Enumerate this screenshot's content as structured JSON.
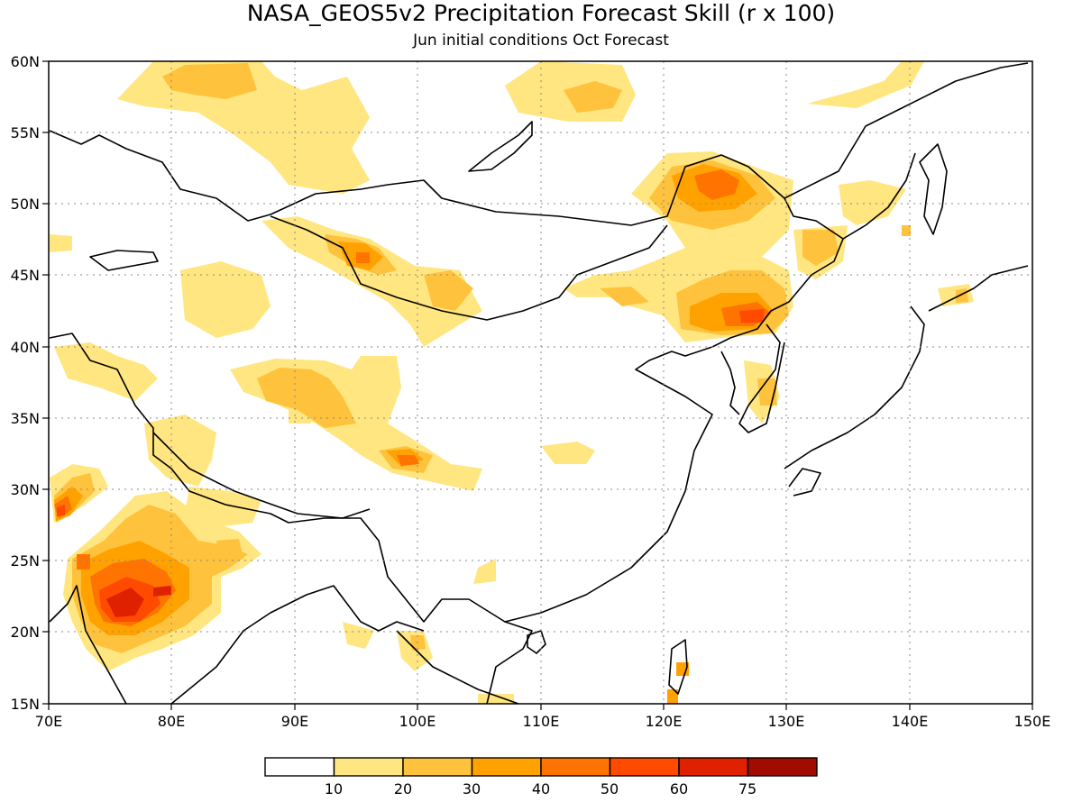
{
  "title": "NASA_GEOS5v2 Precipitation Forecast Skill (r x 100)",
  "subtitle": "Jun initial conditions  Oct Forecast",
  "map": {
    "lon_range": [
      70,
      150
    ],
    "lat_range": [
      15,
      60
    ],
    "x_ticks": [
      "70E",
      "80E",
      "90E",
      "100E",
      "110E",
      "120E",
      "130E",
      "140E",
      "150E"
    ],
    "y_ticks": [
      "15N",
      "20N",
      "25N",
      "30N",
      "35N",
      "40N",
      "45N",
      "50N",
      "55N",
      "60N"
    ],
    "gridlines": "dotted"
  },
  "colorbar": {
    "ticks": [
      "10",
      "20",
      "30",
      "40",
      "50",
      "60",
      "75"
    ],
    "colors": [
      "#ffffff",
      "#ffe680",
      "#ffc23c",
      "#ffa200",
      "#ff7300",
      "#ff4a00",
      "#e02100",
      "#a00c00"
    ]
  },
  "skill_regions": [
    {
      "name": "northern-mongolia-siberia",
      "level": 1,
      "lon": [
        75,
        111
      ],
      "lat": [
        46,
        60
      ]
    },
    {
      "name": "far-north-east",
      "level": 1,
      "lon": [
        123,
        141
      ],
      "lat": [
        49,
        60
      ]
    },
    {
      "name": "northeast-china",
      "level": 2,
      "lon": [
        118,
        134
      ],
      "lat": [
        42,
        52
      ]
    },
    {
      "name": "heilongjiang-core",
      "level": 4,
      "lon": [
        122.5,
        126.5
      ],
      "lat": [
        50,
        52
      ]
    },
    {
      "name": "korea-liaoning",
      "level": 4,
      "lon": [
        123,
        128
      ],
      "lat": [
        41,
        44
      ]
    },
    {
      "name": "western-mongolia",
      "level": 3,
      "lon": [
        93,
        98
      ],
      "lat": [
        44,
        48
      ]
    },
    {
      "name": "tibet-plateau",
      "level": 2,
      "lon": [
        88,
        103
      ],
      "lat": [
        32,
        39
      ]
    },
    {
      "name": "tibet-core",
      "level": 4,
      "lon": [
        98,
        100
      ],
      "lat": [
        31.5,
        32.5
      ]
    },
    {
      "name": "central-india",
      "level": 3,
      "lon": [
        72,
        81
      ],
      "lat": [
        19,
        27
      ]
    },
    {
      "name": "central-india-core",
      "level": 5,
      "lon": [
        74,
        77
      ],
      "lat": [
        21,
        24
      ]
    },
    {
      "name": "pakistan",
      "level": 4,
      "lon": [
        70,
        73
      ],
      "lat": [
        27,
        30
      ]
    }
  ]
}
